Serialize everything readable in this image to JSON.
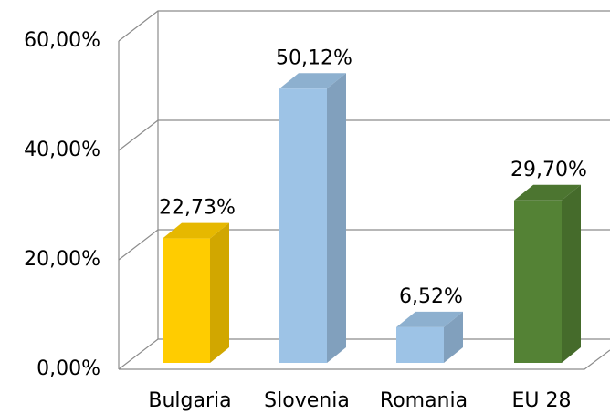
{
  "chart_data": {
    "type": "bar3d",
    "categories": [
      "Bulgaria",
      "Slovenia",
      "Romania",
      "EU 28"
    ],
    "values": [
      22.73,
      50.12,
      6.52,
      29.7
    ],
    "value_labels": [
      "22,73%",
      "50,12%",
      "6,52%",
      "29,70%"
    ],
    "colors": [
      "#ffcc00",
      "#9dc3e6",
      "#9dc3e6",
      "#548235"
    ],
    "ylim": [
      0,
      60
    ],
    "yticks": [
      {
        "value": 0,
        "label": "0,00%"
      },
      {
        "value": 20,
        "label": "20,00%"
      },
      {
        "value": 40,
        "label": "40,00%"
      },
      {
        "value": 60,
        "label": "60,00%"
      }
    ],
    "grid": true
  }
}
